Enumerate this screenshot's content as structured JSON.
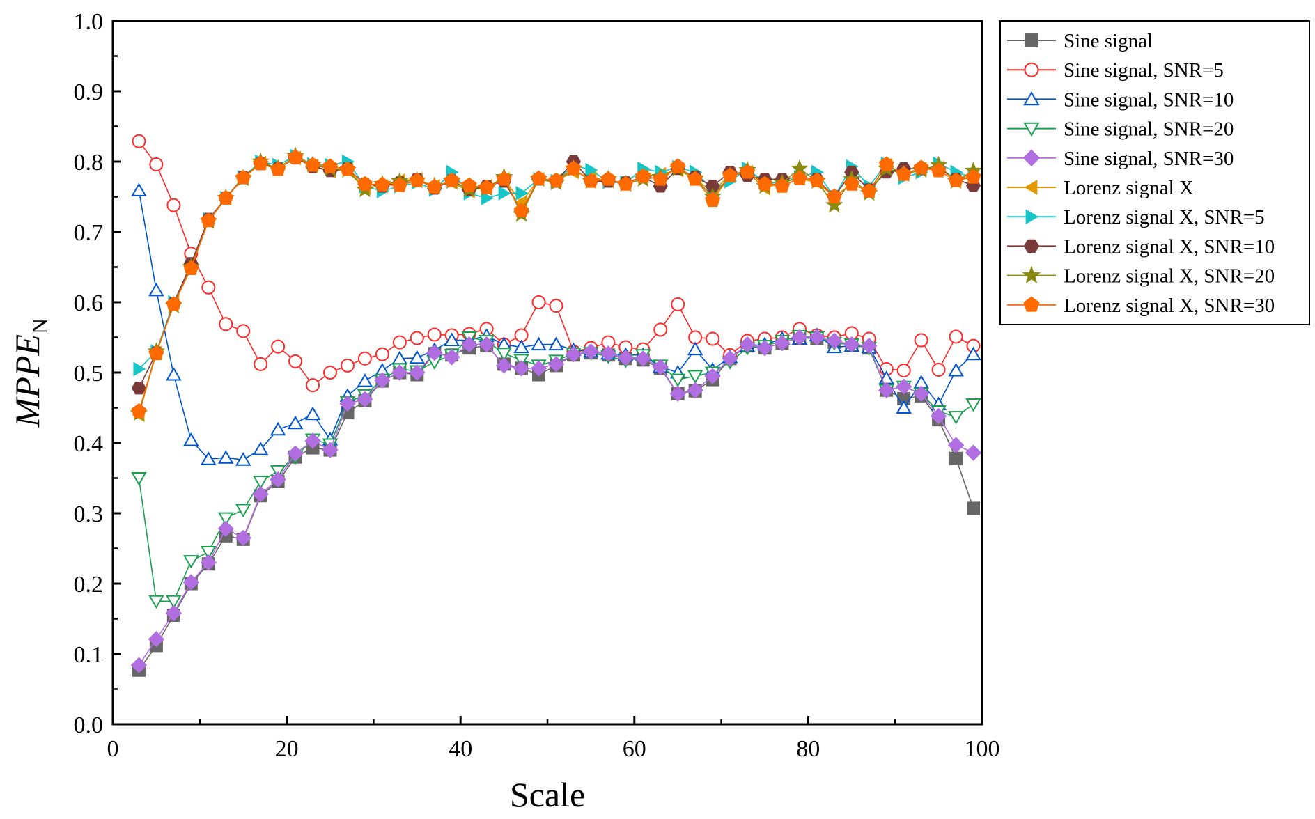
{
  "chart_data": {
    "type": "line",
    "title": "",
    "xlabel": "Scale",
    "ylabel_main": "MPPE",
    "ylabel_sub": "N",
    "xlim": [
      0,
      100
    ],
    "ylim": [
      0.0,
      1.0
    ],
    "xticks": [
      0,
      20,
      40,
      60,
      80,
      100
    ],
    "xtick_labels": [
      "0",
      "20",
      "40",
      "60",
      "80",
      "100"
    ],
    "yticks": [
      0.0,
      0.1,
      0.2,
      0.3,
      0.4,
      0.5,
      0.6,
      0.7,
      0.8,
      0.9,
      1.0
    ],
    "ytick_labels": [
      "0.0",
      "0.1",
      "0.2",
      "0.3",
      "0.4",
      "0.5",
      "0.6",
      "0.7",
      "0.8",
      "0.9",
      "1.0"
    ],
    "grid": false,
    "legend_position": "outside-right-top",
    "x": [
      3,
      5,
      7,
      9,
      11,
      13,
      15,
      17,
      19,
      21,
      23,
      25,
      27,
      29,
      31,
      33,
      35,
      37,
      39,
      41,
      43,
      45,
      47,
      49,
      51,
      53,
      55,
      57,
      59,
      61,
      63,
      65,
      67,
      69,
      71,
      73,
      75,
      77,
      79,
      81,
      83,
      85,
      87,
      89,
      91,
      93,
      95,
      97,
      99
    ],
    "series": [
      {
        "name": "Sine signal",
        "color": "#666666",
        "marker": "square-filled",
        "values": [
          0.077,
          0.112,
          0.155,
          0.2,
          0.228,
          0.268,
          0.263,
          0.325,
          0.345,
          0.38,
          0.393,
          0.39,
          0.443,
          0.46,
          0.488,
          0.5,
          0.497,
          0.527,
          0.525,
          0.535,
          0.538,
          0.512,
          0.506,
          0.497,
          0.51,
          0.525,
          0.528,
          0.525,
          0.52,
          0.518,
          0.506,
          0.47,
          0.474,
          0.49,
          0.52,
          0.538,
          0.535,
          0.542,
          0.55,
          0.548,
          0.543,
          0.54,
          0.535,
          0.475,
          0.463,
          0.467,
          0.433,
          0.378,
          0.307
        ]
      },
      {
        "name": "Sine signal, SNR=5",
        "color": "#ff2a2a",
        "marker": "circle-open",
        "values": [
          0.829,
          0.796,
          0.738,
          0.669,
          0.621,
          0.569,
          0.559,
          0.512,
          0.537,
          0.516,
          0.482,
          0.5,
          0.51,
          0.52,
          0.526,
          0.543,
          0.549,
          0.554,
          0.553,
          0.555,
          0.562,
          0.54,
          0.553,
          0.6,
          0.595,
          0.53,
          0.535,
          0.543,
          0.536,
          0.533,
          0.561,
          0.597,
          0.55,
          0.548,
          0.525,
          0.545,
          0.548,
          0.55,
          0.562,
          0.553,
          0.55,
          0.556,
          0.548,
          0.505,
          0.503,
          0.546,
          0.504,
          0.551,
          0.538
        ]
      },
      {
        "name": "Sine signal, SNR=10",
        "color": "#0055cc",
        "marker": "triangle-up-open",
        "values": [
          0.759,
          0.617,
          0.497,
          0.404,
          0.377,
          0.379,
          0.376,
          0.391,
          0.419,
          0.428,
          0.441,
          0.405,
          0.467,
          0.488,
          0.503,
          0.52,
          0.521,
          0.532,
          0.546,
          0.546,
          0.552,
          0.54,
          0.536,
          0.54,
          0.54,
          0.532,
          0.53,
          0.527,
          0.525,
          0.525,
          0.508,
          0.5,
          0.533,
          0.504,
          0.522,
          0.538,
          0.54,
          0.548,
          0.548,
          0.553,
          0.536,
          0.538,
          0.536,
          0.492,
          0.45,
          0.486,
          0.455,
          0.503,
          0.526
        ]
      },
      {
        "name": "Sine signal, SNR=20",
        "color": "#1aa050",
        "marker": "triangle-down-open",
        "values": [
          0.35,
          0.175,
          0.175,
          0.232,
          0.245,
          0.293,
          0.305,
          0.345,
          0.36,
          0.38,
          0.405,
          0.398,
          0.458,
          0.468,
          0.49,
          0.505,
          0.502,
          0.515,
          0.525,
          0.55,
          0.545,
          0.527,
          0.518,
          0.51,
          0.517,
          0.527,
          0.528,
          0.523,
          0.517,
          0.525,
          0.51,
          0.49,
          0.495,
          0.5,
          0.515,
          0.535,
          0.538,
          0.545,
          0.552,
          0.55,
          0.542,
          0.54,
          0.535,
          0.475,
          0.48,
          0.47,
          0.445,
          0.437,
          0.455
        ]
      },
      {
        "name": "Sine signal, SNR=30",
        "color": "#b06ee0",
        "marker": "diamond-filled",
        "values": [
          0.084,
          0.121,
          0.158,
          0.202,
          0.23,
          0.278,
          0.265,
          0.327,
          0.348,
          0.385,
          0.403,
          0.39,
          0.456,
          0.462,
          0.489,
          0.5,
          0.5,
          0.528,
          0.522,
          0.54,
          0.54,
          0.51,
          0.506,
          0.506,
          0.512,
          0.526,
          0.53,
          0.527,
          0.521,
          0.52,
          0.508,
          0.47,
          0.475,
          0.495,
          0.52,
          0.54,
          0.535,
          0.542,
          0.55,
          0.55,
          0.545,
          0.54,
          0.538,
          0.475,
          0.48,
          0.47,
          0.438,
          0.397,
          0.386
        ]
      },
      {
        "name": "Lorenz signal X",
        "color": "#e09a00",
        "marker": "triangle-left-filled",
        "values": [
          0.44,
          0.528,
          0.6,
          0.652,
          0.715,
          0.748,
          0.776,
          0.798,
          0.79,
          0.805,
          0.794,
          0.786,
          0.789,
          0.763,
          0.765,
          0.773,
          0.775,
          0.765,
          0.77,
          0.758,
          0.765,
          0.775,
          0.742,
          0.775,
          0.773,
          0.785,
          0.778,
          0.772,
          0.768,
          0.78,
          0.782,
          0.788,
          0.776,
          0.756,
          0.782,
          0.785,
          0.762,
          0.77,
          0.776,
          0.77,
          0.75,
          0.768,
          0.758,
          0.795,
          0.783,
          0.79,
          0.791,
          0.775,
          0.78
        ]
      },
      {
        "name": "Lorenz signal X, SNR=5",
        "color": "#16c6c6",
        "marker": "triangle-right-filled",
        "values": [
          0.505,
          0.53,
          0.6,
          0.652,
          0.718,
          0.748,
          0.778,
          0.8,
          0.795,
          0.808,
          0.796,
          0.795,
          0.8,
          0.765,
          0.758,
          0.765,
          0.77,
          0.76,
          0.785,
          0.755,
          0.748,
          0.755,
          0.755,
          0.775,
          0.772,
          0.795,
          0.788,
          0.771,
          0.77,
          0.79,
          0.785,
          0.792,
          0.785,
          0.76,
          0.772,
          0.79,
          0.77,
          0.77,
          0.778,
          0.785,
          0.75,
          0.793,
          0.765,
          0.797,
          0.777,
          0.785,
          0.797,
          0.785,
          0.777
        ]
      },
      {
        "name": "Lorenz signal X, SNR=10",
        "color": "#7a3a3a",
        "marker": "hexagon-filled",
        "values": [
          0.478,
          0.528,
          0.598,
          0.655,
          0.718,
          0.748,
          0.778,
          0.797,
          0.79,
          0.805,
          0.793,
          0.787,
          0.79,
          0.768,
          0.765,
          0.77,
          0.775,
          0.762,
          0.773,
          0.76,
          0.765,
          0.772,
          0.73,
          0.775,
          0.772,
          0.8,
          0.772,
          0.772,
          0.77,
          0.778,
          0.765,
          0.79,
          0.778,
          0.765,
          0.785,
          0.78,
          0.775,
          0.775,
          0.778,
          0.775,
          0.75,
          0.785,
          0.76,
          0.785,
          0.79,
          0.79,
          0.79,
          0.775,
          0.766
        ]
      },
      {
        "name": "Lorenz signal X, SNR=20",
        "color": "#8a8a10",
        "marker": "star-filled",
        "values": [
          0.442,
          0.53,
          0.595,
          0.65,
          0.715,
          0.748,
          0.776,
          0.8,
          0.79,
          0.808,
          0.795,
          0.79,
          0.788,
          0.76,
          0.768,
          0.772,
          0.773,
          0.765,
          0.772,
          0.76,
          0.762,
          0.778,
          0.725,
          0.775,
          0.77,
          0.79,
          0.772,
          0.775,
          0.768,
          0.775,
          0.778,
          0.79,
          0.776,
          0.75,
          0.78,
          0.788,
          0.765,
          0.77,
          0.79,
          0.772,
          0.738,
          0.775,
          0.755,
          0.79,
          0.782,
          0.788,
          0.795,
          0.772,
          0.787
        ]
      },
      {
        "name": "Lorenz signal X, SNR=30",
        "color": "#ff6a00",
        "marker": "pentagon-filled",
        "values": [
          0.445,
          0.527,
          0.597,
          0.648,
          0.716,
          0.748,
          0.777,
          0.797,
          0.789,
          0.806,
          0.795,
          0.793,
          0.789,
          0.768,
          0.767,
          0.766,
          0.773,
          0.764,
          0.773,
          0.766,
          0.763,
          0.775,
          0.73,
          0.776,
          0.773,
          0.79,
          0.772,
          0.775,
          0.768,
          0.779,
          0.775,
          0.793,
          0.775,
          0.745,
          0.78,
          0.785,
          0.768,
          0.765,
          0.776,
          0.773,
          0.75,
          0.768,
          0.758,
          0.796,
          0.782,
          0.791,
          0.787,
          0.773,
          0.778
        ]
      }
    ]
  }
}
